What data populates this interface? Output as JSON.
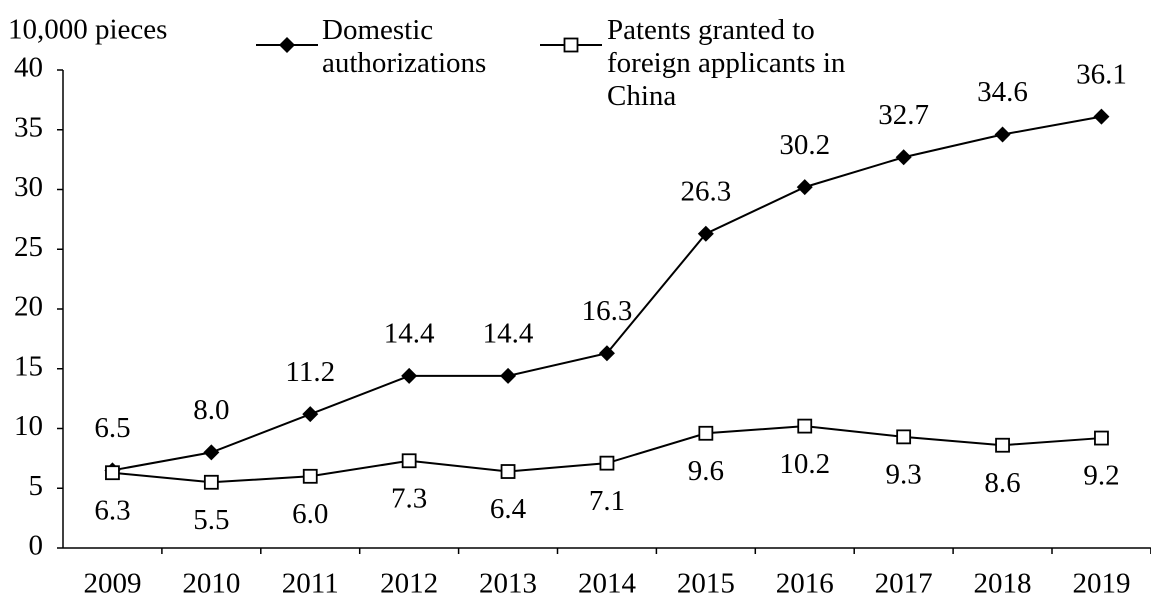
{
  "chart_data": {
    "type": "line",
    "y_label": "10,000 pieces",
    "categories": [
      "2009",
      "2010",
      "2011",
      "2012",
      "2013",
      "2014",
      "2015",
      "2016",
      "2017",
      "2018",
      "2019"
    ],
    "series": [
      {
        "name": "Domestic authorizations",
        "color": "#000000",
        "marker": "diamond",
        "values": [
          6.5,
          8.0,
          11.2,
          14.4,
          14.4,
          16.3,
          26.3,
          30.2,
          32.7,
          34.6,
          36.1
        ],
        "value_labels": [
          "6.5",
          "8.0",
          "11.2",
          "14.4",
          "14.4",
          "16.3",
          "26.3",
          "30.2",
          "32.7",
          "34.6",
          "36.1"
        ]
      },
      {
        "name": "Patents granted to foreign applicants in China",
        "color": "#000000",
        "marker": "square",
        "values": [
          6.3,
          5.5,
          6.0,
          7.3,
          6.4,
          7.1,
          9.6,
          10.2,
          9.3,
          8.6,
          9.2
        ],
        "value_labels": [
          "6.3",
          "5.5",
          "6.0",
          "7.3",
          "6.4",
          "7.1",
          "9.6",
          "10.2",
          "9.3",
          "8.6",
          "9.2"
        ]
      }
    ],
    "ylim": [
      0,
      40
    ],
    "yticks": [
      0,
      5,
      10,
      15,
      20,
      25,
      30,
      35,
      40
    ],
    "grid": false
  }
}
